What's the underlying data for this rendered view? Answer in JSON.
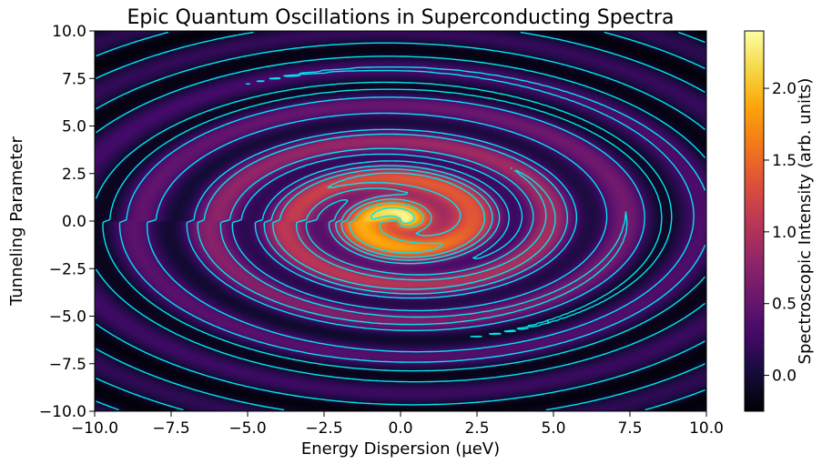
{
  "chart_data": {
    "type": "heatmap",
    "title": "Epic Quantum Oscillations in Superconducting Spectra",
    "xlabel": "Energy Dispersion (μeV)",
    "ylabel": "Tunneling Parameter",
    "xlim": [
      -10,
      10
    ],
    "ylim": [
      -10,
      10
    ],
    "x_ticks": [
      {
        "value": -10,
        "label": "−10.0"
      },
      {
        "value": -7.5,
        "label": "−7.5"
      },
      {
        "value": -5,
        "label": "−5.0"
      },
      {
        "value": -2.5,
        "label": "−2.5"
      },
      {
        "value": 0,
        "label": "0.0"
      },
      {
        "value": 2.5,
        "label": "2.5"
      },
      {
        "value": 5,
        "label": "5.0"
      },
      {
        "value": 7.5,
        "label": "7.5"
      },
      {
        "value": 10,
        "label": "10.0"
      }
    ],
    "y_ticks": [
      {
        "value": 10,
        "label": "10.0"
      },
      {
        "value": 7.5,
        "label": "7.5"
      },
      {
        "value": 5,
        "label": "5.0"
      },
      {
        "value": 2.5,
        "label": "2.5"
      },
      {
        "value": 0,
        "label": "0.0"
      },
      {
        "value": -2.5,
        "label": "−2.5"
      },
      {
        "value": -5,
        "label": "−5.0"
      },
      {
        "value": -7.5,
        "label": "−7.5"
      },
      {
        "value": -10,
        "label": "−10.0"
      }
    ],
    "colorbar": {
      "label": "Spectroscopic Intensity (arb. units)",
      "range": [
        -0.25,
        2.4
      ],
      "colormap": "inferno",
      "ticks": [
        {
          "value": 0,
          "label": "0.0"
        },
        {
          "value": 0.5,
          "label": "0.5"
        },
        {
          "value": 1,
          "label": "1.0"
        },
        {
          "value": 1.5,
          "label": "1.5"
        },
        {
          "value": 2,
          "label": "2.0"
        }
      ]
    },
    "contour_color": "#00e5ee",
    "peak": {
      "x": 0,
      "y": 0,
      "value": 2.35
    },
    "grid": false
  }
}
